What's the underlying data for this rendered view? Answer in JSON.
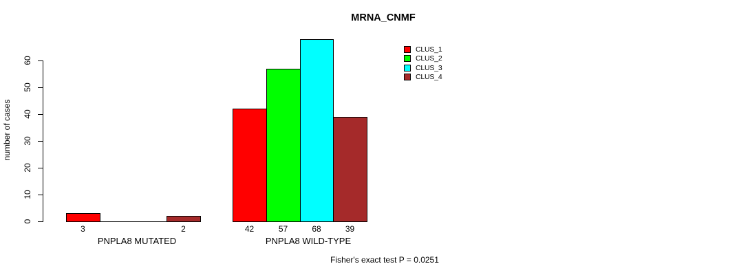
{
  "title": "MRNA_CNMF",
  "y_axis": {
    "label": "number of cases"
  },
  "footer": "Fisher's exact test P = 0.0251",
  "groups": [
    {
      "label": "PNPLA8 MUTATED",
      "counts": [
        3,
        0,
        0,
        2
      ]
    },
    {
      "label": "PNPLA8 WILD-TYPE",
      "counts": [
        42,
        57,
        68,
        39
      ]
    }
  ],
  "legend": {
    "position": "top-right",
    "items": [
      {
        "label": "CLUS_1",
        "color": "#FF0000"
      },
      {
        "label": "CLUS_2",
        "color": "#00FF00"
      },
      {
        "label": "CLUS_3",
        "color": "#00FFFF"
      },
      {
        "label": "CLUS_4",
        "color": "#A52A2A"
      }
    ]
  },
  "chart_data": {
    "type": "bar",
    "title": "MRNA_CNMF",
    "xlabel": "",
    "ylabel": "number of cases",
    "ylim": [
      0,
      68
    ],
    "yticks": [
      0,
      10,
      20,
      30,
      40,
      50,
      60
    ],
    "grid": false,
    "legend_position": "top-right",
    "categories": [
      "PNPLA8 MUTATED",
      "PNPLA8 WILD-TYPE"
    ],
    "series": [
      {
        "name": "CLUS_1",
        "color": "#FF0000",
        "values": [
          3,
          42
        ]
      },
      {
        "name": "CLUS_2",
        "color": "#00FF00",
        "values": [
          0,
          57
        ]
      },
      {
        "name": "CLUS_3",
        "color": "#00FFFF",
        "values": [
          0,
          68
        ]
      },
      {
        "name": "CLUS_4",
        "color": "#A52A2A",
        "values": [
          2,
          39
        ]
      }
    ],
    "bar_count_labels": "shown below each non-zero bar",
    "annotation": "Fisher's exact test P = 0.0251"
  }
}
